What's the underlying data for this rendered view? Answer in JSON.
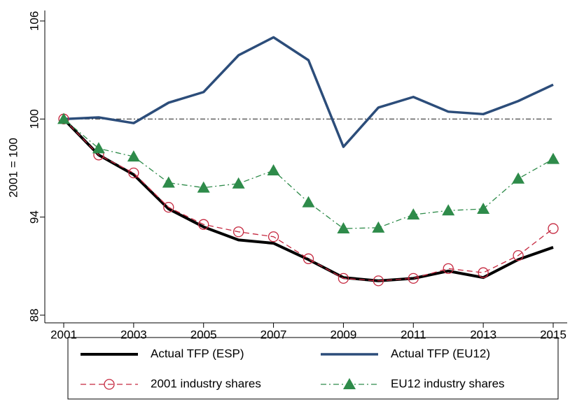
{
  "chart_data": {
    "type": "line",
    "y_label": "2001 = 100",
    "x": [
      2001,
      2002,
      2003,
      2004,
      2005,
      2006,
      2007,
      2008,
      2009,
      2010,
      2011,
      2012,
      2013,
      2014,
      2015
    ],
    "xlim": [
      2001,
      2015
    ],
    "xticks": [
      2001,
      2003,
      2005,
      2007,
      2009,
      2011,
      2013,
      2015
    ],
    "ylim": [
      88,
      106
    ],
    "yticks": [
      88,
      94,
      100,
      106
    ],
    "reference_line": 100,
    "series": [
      {
        "name": "Actual TFP (ESP)",
        "color": "#000000",
        "line_width": 4,
        "dash": "none",
        "marker": "none",
        "values": [
          100,
          97.8,
          96.6,
          94.5,
          93.4,
          92.6,
          92.4,
          91.4,
          90.3,
          90.1,
          90.25,
          90.7,
          90.3,
          91.4,
          92.15
        ]
      },
      {
        "name": "Actual TFP (EU12)",
        "color": "#2c4d7a",
        "line_width": 3.5,
        "dash": "none",
        "marker": "none",
        "values": [
          100,
          100.1,
          99.75,
          101.0,
          101.65,
          103.9,
          105.0,
          103.6,
          98.3,
          100.7,
          101.35,
          100.45,
          100.3,
          101.1,
          102.1
        ]
      },
      {
        "name": "2001 industry shares",
        "color": "#c5283f",
        "line_width": 1.3,
        "dash": "8,5",
        "marker": "circle",
        "values": [
          100,
          97.8,
          96.7,
          94.6,
          93.55,
          93.1,
          92.8,
          91.45,
          90.25,
          90.1,
          90.25,
          90.85,
          90.6,
          91.65,
          93.3
        ]
      },
      {
        "name": "EU12 industry shares",
        "color": "#2e8b4a",
        "line_width": 1.3,
        "dash": "8,4,2,4",
        "marker": "triangle",
        "values": [
          100,
          98.2,
          97.7,
          96.1,
          95.8,
          96.05,
          96.85,
          94.9,
          93.3,
          93.35,
          94.15,
          94.4,
          94.5,
          96.35,
          97.55
        ]
      }
    ],
    "legend": "bottom"
  }
}
